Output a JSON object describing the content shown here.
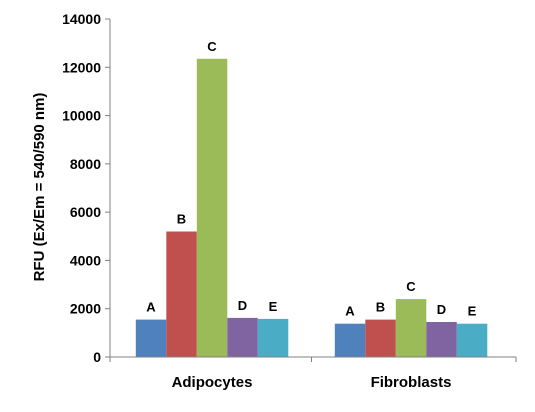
{
  "chart_data": {
    "type": "bar",
    "title": "",
    "xlabel": "",
    "ylabel": "RFU (Ex/Em = 540/590 nm)",
    "ylim": [
      0,
      14000
    ],
    "yticks": [
      0,
      2000,
      4000,
      6000,
      8000,
      10000,
      12000,
      14000
    ],
    "grid": false,
    "legend": "none",
    "categories": [
      "Adipocytes",
      "Fibroblasts"
    ],
    "series": [
      {
        "name": "A",
        "color": "#4f81bd",
        "values": [
          1550,
          1380
        ]
      },
      {
        "name": "B",
        "color": "#c0504d",
        "values": [
          5200,
          1550
        ]
      },
      {
        "name": "C",
        "color": "#9bbb59",
        "values": [
          12350,
          2400
        ]
      },
      {
        "name": "D",
        "color": "#8064a2",
        "values": [
          1620,
          1450
        ]
      },
      {
        "name": "E",
        "color": "#4bacc6",
        "values": [
          1580,
          1380
        ]
      }
    ]
  }
}
